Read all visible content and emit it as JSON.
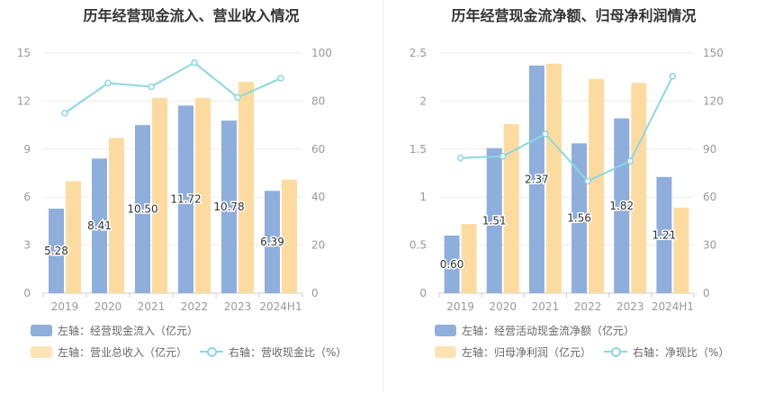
{
  "chart_data": [
    {
      "type": "bar",
      "title": "历年经营现金流入、营业收入情况",
      "categories": [
        "2019",
        "2020",
        "2021",
        "2022",
        "2023",
        "2024H1"
      ],
      "left_axis": {
        "min": 0,
        "max": 15,
        "ticks": [
          "0",
          "3",
          "6",
          "9",
          "12",
          "15"
        ]
      },
      "right_axis": {
        "min": 0,
        "max": 100,
        "ticks": [
          "0",
          "20",
          "40",
          "60",
          "80",
          "100"
        ]
      },
      "series": [
        {
          "name": "左轴：经营现金流入（亿元）",
          "kind": "bar",
          "axis": "left",
          "color": "#8eaedc",
          "values": [
            5.28,
            8.41,
            10.5,
            11.72,
            10.78,
            6.39
          ],
          "labels": [
            "5.28",
            "8.41",
            "10.50",
            "11.72",
            "10.78",
            "6.39"
          ]
        },
        {
          "name": "左轴：营业总收入（亿元）",
          "kind": "bar",
          "axis": "left",
          "color": "#fddba0",
          "values": [
            7.0,
            9.7,
            12.2,
            12.2,
            13.2,
            7.1
          ]
        },
        {
          "name": "右轴：营收现金比（%）",
          "kind": "line",
          "axis": "right",
          "color": "#8ad8e0",
          "values": [
            75.0,
            87.5,
            86.0,
            96.0,
            81.5,
            89.5
          ]
        }
      ],
      "grid": true,
      "legend": "bottom"
    },
    {
      "type": "bar",
      "title": "历年经营现金流净额、归母净利润情况",
      "categories": [
        "2019",
        "2020",
        "2021",
        "2022",
        "2023",
        "2024H1"
      ],
      "left_axis": {
        "min": 0,
        "max": 2.5,
        "ticks": [
          "0",
          "0.5",
          "1",
          "1.5",
          "2",
          "2.5"
        ]
      },
      "right_axis": {
        "min": 0,
        "max": 150,
        "ticks": [
          "0",
          "30",
          "60",
          "90",
          "120",
          "150"
        ]
      },
      "series": [
        {
          "name": "左轴：经营活动现金流净额（亿元）",
          "kind": "bar",
          "axis": "left",
          "color": "#8eaedc",
          "values": [
            0.6,
            1.51,
            2.37,
            1.56,
            1.82,
            1.21
          ],
          "labels": [
            "0.60",
            "1.51",
            "2.37",
            "1.56",
            "1.82",
            "1.21"
          ]
        },
        {
          "name": "左轴：归母净利润（亿元）",
          "kind": "bar",
          "axis": "left",
          "color": "#fddba0",
          "values": [
            0.72,
            1.76,
            2.39,
            2.23,
            2.19,
            0.89
          ]
        },
        {
          "name": "右轴：净现比（%）",
          "kind": "line",
          "axis": "right",
          "color": "#8ad8e0",
          "values": [
            84.5,
            85.5,
            99.5,
            70.0,
            82.5,
            135.5
          ]
        }
      ],
      "grid": true,
      "legend": "bottom"
    }
  ]
}
